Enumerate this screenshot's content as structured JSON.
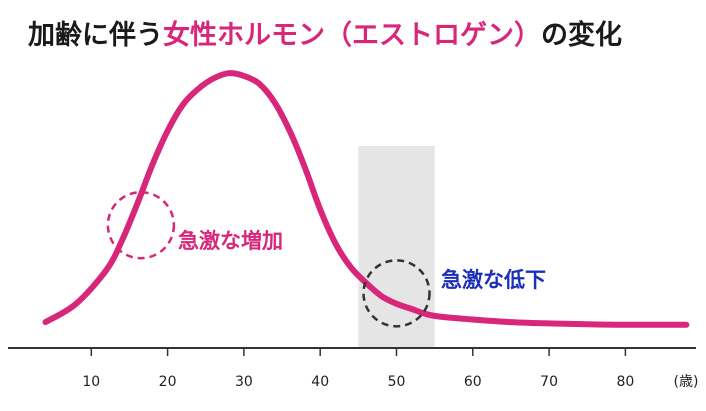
{
  "title": {
    "prefix": "加齢に伴う",
    "highlight": "女性ホルモン（エストロゲン）",
    "suffix": "の変化"
  },
  "colors": {
    "curve": "#d8267a",
    "increase_label": "#d8267a",
    "decrease_label": "#1b2fb8",
    "band": "#e5e5e5",
    "axis": "#333333"
  },
  "chart_data": {
    "type": "line",
    "title": "加齢に伴う女性ホルモン（エストロゲン）の変化",
    "xlabel": "(歳)",
    "ylabel": "",
    "xlim": [
      0,
      88
    ],
    "ylim": [
      0,
      100
    ],
    "x_ticks": [
      10,
      20,
      30,
      40,
      50,
      60,
      70,
      80
    ],
    "grid": false,
    "series": [
      {
        "x": [
          4,
          8,
          12,
          14,
          16,
          18,
          20,
          22,
          24,
          26,
          28,
          30,
          32,
          34,
          36,
          38,
          40,
          42,
          44,
          46,
          48,
          50,
          52,
          54,
          56,
          60,
          65,
          70,
          75,
          80,
          88
        ],
        "values": [
          3,
          10,
          23,
          34,
          48,
          63,
          76,
          86,
          92,
          96,
          98,
          97,
          94,
          87,
          76,
          62,
          46,
          33,
          24,
          18,
          13,
          10,
          8,
          6,
          5,
          4,
          3,
          2.5,
          2.2,
          2,
          2
        ]
      }
    ],
    "highlight_band": {
      "x_start": 45,
      "x_end": 55
    },
    "annotations": [
      {
        "text": "急激な増加",
        "x": 16.5,
        "y": 40,
        "type": "increase"
      },
      {
        "text": "急激な低下",
        "x": 50,
        "y": 14,
        "type": "decrease"
      }
    ]
  }
}
